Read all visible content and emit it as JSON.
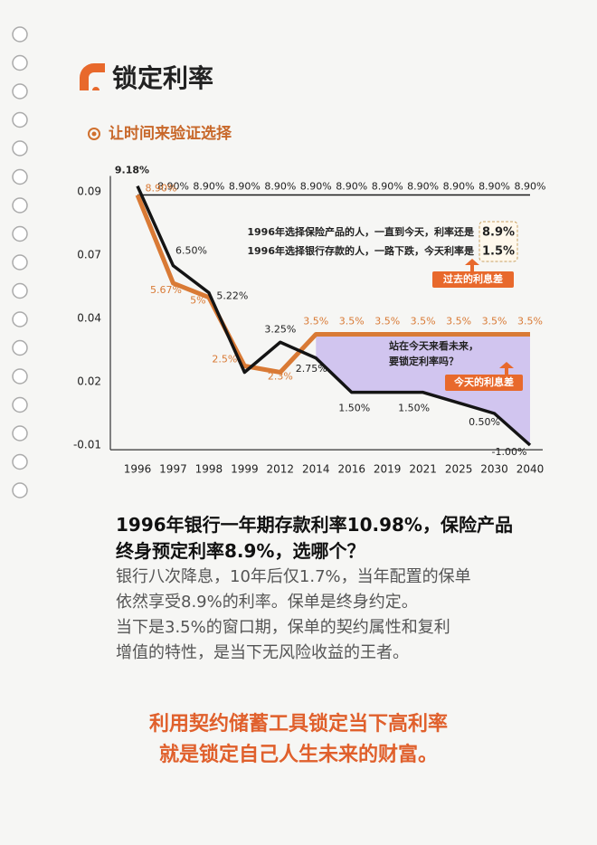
{
  "header": {
    "title": "锁定利率",
    "subtitle": "让时间来验证选择"
  },
  "chart_data": {
    "type": "line",
    "categories": [
      "1996",
      "1997",
      "1998",
      "1999",
      "2012",
      "2014",
      "2016",
      "2019",
      "2021",
      "2025",
      "2030",
      "2040"
    ],
    "series": [
      {
        "color": "#1a1a1a",
        "values": [
          0.089,
          0.089,
          0.089,
          0.089,
          0.089,
          0.089,
          0.089,
          0.089,
          0.089,
          0.089,
          0.089,
          0.089
        ],
        "value_labels": [
          null,
          "8.90%",
          "8.90%",
          "8.90%",
          "8.90%",
          "8.90%",
          "8.90%",
          "8.90%",
          "8.90%",
          "8.90%",
          "8.90%",
          "8.90%"
        ]
      },
      {
        "color": "#d97a35",
        "values": [
          0.089,
          0.0567,
          0.05,
          0.025,
          0.023,
          0.035,
          0.035,
          0.035,
          0.035,
          0.035,
          0.035,
          0.035
        ],
        "value_labels": [
          "8.90%",
          "5.67%",
          "5%",
          "2.5%",
          "2.3%",
          "3.5%",
          "3.5%",
          "3.5%",
          "3.5%",
          "3.5%",
          "3.5%",
          "3.5%"
        ]
      },
      {
        "color": "#141414",
        "values": [
          0.0918,
          0.065,
          0.0522,
          0.023,
          0.0325,
          0.0275,
          0.015,
          0.015,
          0.015,
          0.01,
          0.005,
          -0.01
        ],
        "value_labels": [
          "9.18%",
          "6.50%",
          "5.22%",
          null,
          "3.25%",
          "2.75%",
          "1.50%",
          null,
          "1.50%",
          null,
          "0.50%",
          "-1.00%"
        ]
      }
    ],
    "ylim": [
      -0.0122,
      0.095
    ],
    "yticks": [
      0.09,
      0.07,
      0.04,
      0.02,
      -0.01
    ],
    "spread_color": "#c8b9ee",
    "annotations": [
      "1996年选择保险产品的人，一直到今天，利率还是",
      "8.9%",
      "1996年选择银行存款的人，一路下跌，今天利率是",
      "1.5%",
      "过去的利息差",
      "站在今天来看未来，",
      "要锁定利率吗？",
      "今天的利息差"
    ]
  },
  "body": {
    "heading": [
      "1996年银行一年期存款利率10.98%，保险产品",
      "终身预定利率8.9%，选哪个？"
    ],
    "paragraphs": [
      "银行八次降息，10年后仅1.7%，当年配置的保单",
      "依然享受8.9%的利率。保单是终身约定。",
      "当下是3.5%的窗口期，保单的契约属性和复利",
      "增值的特性，是当下无风险收益的王者。"
    ],
    "closing": [
      "利用契约储蓄工具锁定当下高利率",
      "就是锁定自己人生未来的财富。"
    ]
  }
}
